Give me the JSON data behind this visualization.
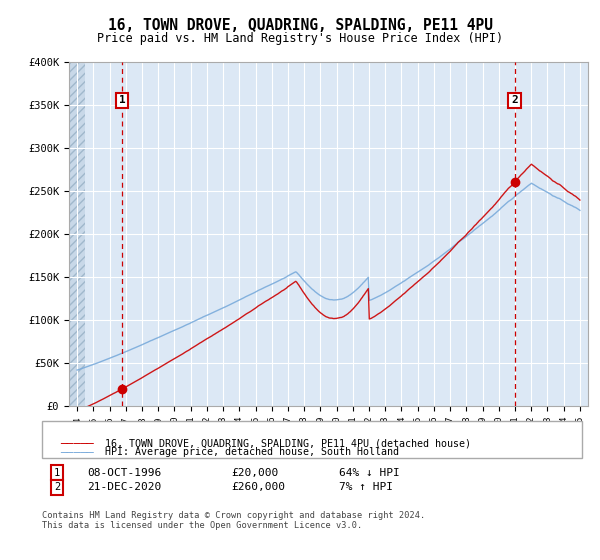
{
  "title": "16, TOWN DROVE, QUADRING, SPALDING, PE11 4PU",
  "subtitle": "Price paid vs. HM Land Registry's House Price Index (HPI)",
  "sale1_date_num": 1996.77,
  "sale1_price": 20000,
  "sale2_date_num": 2020.97,
  "sale2_price": 260000,
  "legend_line1": "16, TOWN DROVE, QUADRING, SPALDING, PE11 4PU (detached house)",
  "legend_line2": "HPI: Average price, detached house, South Holland",
  "footer": "Contains HM Land Registry data © Crown copyright and database right 2024.\nThis data is licensed under the Open Government Licence v3.0.",
  "ylim": [
    0,
    400000
  ],
  "xlim_left": 1993.5,
  "xlim_right": 2025.5,
  "bg_color": "#dce8f5",
  "hatch_end": 1994.5,
  "red_color": "#cc0000",
  "blue_color": "#7aabdb",
  "table_row1": [
    "1",
    "08-OCT-1996",
    "£20,000",
    "64% ↓ HPI"
  ],
  "table_row2": [
    "2",
    "21-DEC-2020",
    "£260,000",
    "7% ↑ HPI"
  ],
  "hpi_start_year": 1994,
  "hpi_end_year": 2025,
  "hpi_n_points": 500
}
